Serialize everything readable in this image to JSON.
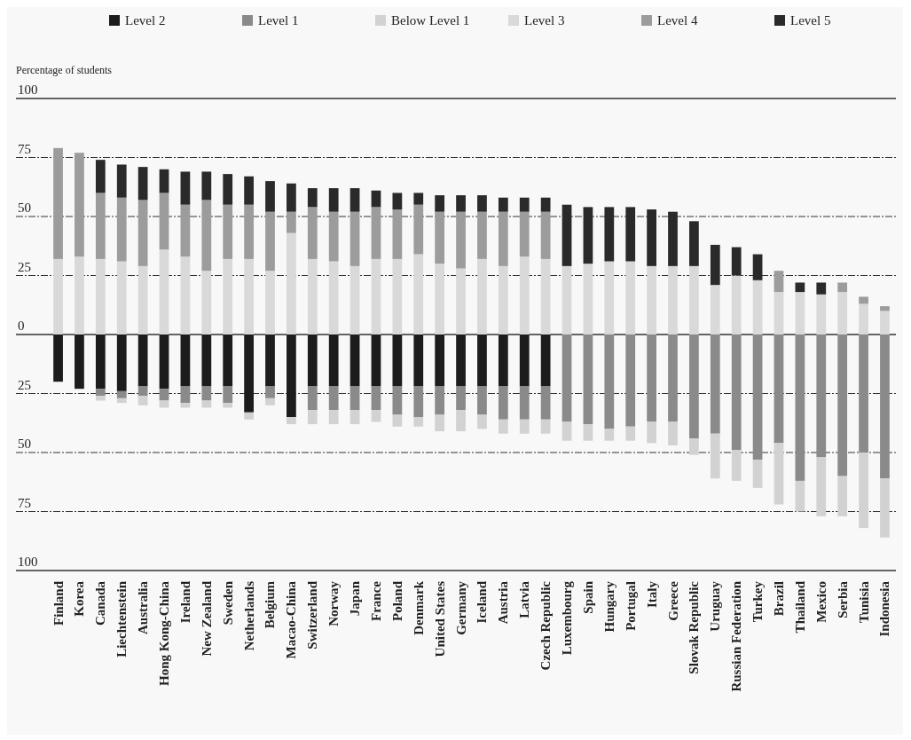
{
  "chart_data": {
    "type": "bar",
    "stacked": true,
    "ylabel": "Percentage of students",
    "legend": "top",
    "grid": "y",
    "categories": [
      "Finland",
      "Korea",
      "Canada",
      "Liechtenstein",
      "Australia",
      "Hong Kong-China",
      "Ireland",
      "New Zealand",
      "Sweden",
      "Netherlands",
      "Belgium",
      "Macao-China",
      "Switzerland",
      "Norway",
      "Japan",
      "France",
      "Poland",
      "Denmark",
      "United States",
      "Germany",
      "Iceland",
      "Austria",
      "Latvia",
      "Czech Republic",
      "Luxembourg",
      "Spain",
      "Hungary",
      "Portugal",
      "Italy",
      "Greece",
      "Slovak Republic",
      "Uruguay",
      "Russian Federation",
      "Turkey",
      "Brazil",
      "Thailand",
      "Mexico",
      "Serbia",
      "Tunisia",
      "Indonesia"
    ],
    "ylim": [
      -100,
      100
    ],
    "yticks": [
      {
        "value": -100,
        "label": "100"
      },
      {
        "value": -75,
        "label": "75"
      },
      {
        "value": -50,
        "label": "50"
      },
      {
        "value": -25,
        "label": "25"
      },
      0,
      25,
      50,
      75,
      100
    ],
    "series": [
      {
        "name": "Level 2",
        "color": "#1c1c1c",
        "values": [
          -20,
          -23,
          -23,
          -24,
          -22,
          -23,
          -22,
          -22,
          -22,
          -33,
          -22,
          -35,
          -22,
          -22,
          -22,
          -22,
          -22,
          -22,
          -22,
          -22,
          -22,
          -22,
          -22,
          -22,
          0,
          0,
          0,
          0,
          0,
          0,
          0,
          0,
          0,
          0,
          0,
          0,
          0,
          0,
          0,
          0
        ]
      },
      {
        "name": "Level 1",
        "color": "#8a8a8a",
        "values": [
          0,
          0,
          -3,
          -3,
          -4,
          -5,
          -7,
          -6,
          -7,
          0,
          -5,
          0,
          -10,
          -10,
          -10,
          -10,
          -12,
          -13,
          -12,
          -10,
          -12,
          -14,
          -14,
          -14,
          -37,
          -38,
          -40,
          -39,
          -37,
          -37,
          -44,
          -42,
          -49,
          -53,
          -46,
          -62,
          -52,
          -60,
          -50,
          -61
        ]
      },
      {
        "name": "Below Level 1",
        "color": "#d2d2d2",
        "values": [
          0,
          0,
          -2,
          -2,
          -4,
          -3,
          -2,
          -3,
          -2,
          -3,
          -3,
          -3,
          -6,
          -6,
          -6,
          -5,
          -5,
          -4,
          -7,
          -9,
          -6,
          -6,
          -6,
          -6,
          -8,
          -7,
          -5,
          -6,
          -9,
          -10,
          -7,
          -19,
          -13,
          -12,
          -26,
          -13,
          -25,
          -17,
          -32,
          -25
        ]
      },
      {
        "name": "Level 3",
        "color": "#d9d9d9",
        "values": [
          32,
          33,
          32,
          31,
          29,
          36,
          33,
          27,
          32,
          32,
          27,
          43,
          32,
          31,
          29,
          32,
          32,
          34,
          30,
          28,
          32,
          29,
          33,
          32,
          29,
          30,
          31,
          31,
          29,
          29,
          29,
          21,
          25,
          23,
          18,
          18,
          17,
          18,
          13,
          10
        ]
      },
      {
        "name": "Level 4",
        "color": "#9c9c9c",
        "values": [
          47,
          44,
          28,
          27,
          28,
          24,
          22,
          30,
          23,
          23,
          25,
          9,
          22,
          21,
          23,
          22,
          21,
          21,
          22,
          24,
          20,
          23,
          19,
          20,
          0,
          0,
          0,
          0,
          0,
          0,
          0,
          0,
          0,
          0,
          9,
          0,
          0,
          4,
          3,
          2
        ]
      },
      {
        "name": "Level 5",
        "color": "#2a2a2a",
        "values": [
          0,
          0,
          14,
          14,
          14,
          10,
          14,
          12,
          13,
          12,
          13,
          12,
          8,
          10,
          10,
          7,
          7,
          5,
          7,
          7,
          7,
          6,
          6,
          6,
          26,
          24,
          23,
          23,
          24,
          23,
          19,
          17,
          12,
          11,
          0,
          4,
          5,
          0,
          0,
          0
        ]
      }
    ]
  }
}
